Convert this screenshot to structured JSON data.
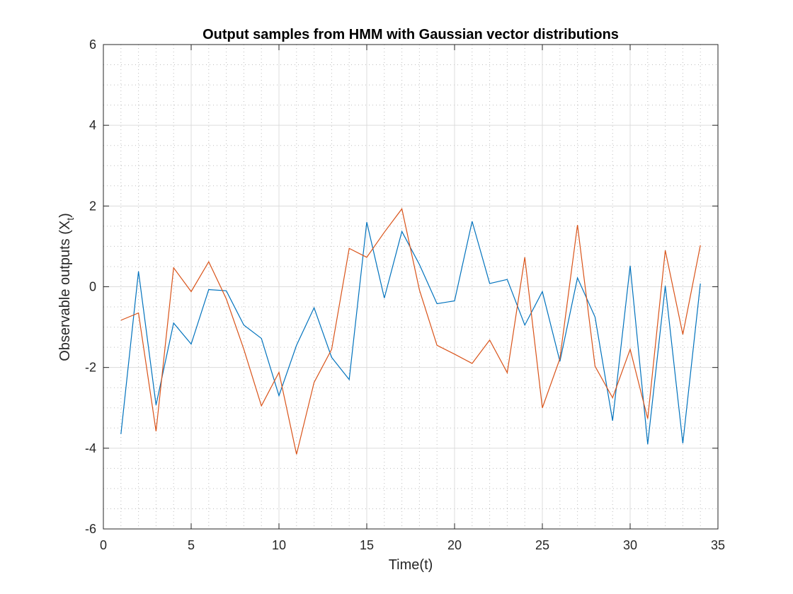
{
  "chart_data": {
    "type": "line",
    "title": "Output samples from HMM with Gaussian vector distributions",
    "xlabel": "Time(t)",
    "ylabel": "Observable outputs (X",
    "ylabel_subscript": "t",
    "ylabel_suffix": ")",
    "xlim": [
      0,
      35
    ],
    "ylim": [
      -6,
      6
    ],
    "xticks": [
      0,
      5,
      10,
      15,
      20,
      25,
      30,
      35
    ],
    "yticks": [
      -6,
      -4,
      -2,
      0,
      2,
      4,
      6
    ],
    "grid": true,
    "minor_grid": true,
    "x": [
      1,
      2,
      3,
      4,
      5,
      6,
      7,
      8,
      9,
      10,
      11,
      12,
      13,
      14,
      15,
      16,
      17,
      18,
      19,
      20,
      21,
      22,
      23,
      24,
      25,
      26,
      27,
      28,
      29,
      30,
      31,
      32,
      33,
      34
    ],
    "series": [
      {
        "color": "#0072BD",
        "values": [
          -3.65,
          0.38,
          -2.93,
          -0.9,
          -1.42,
          -0.07,
          -0.1,
          -0.95,
          -1.28,
          -2.7,
          -1.45,
          -0.52,
          -1.75,
          -2.3,
          1.6,
          -0.28,
          1.37,
          0.55,
          -0.42,
          -0.35,
          1.62,
          0.08,
          0.18,
          -0.95,
          -0.12,
          -1.85,
          0.22,
          -0.75,
          -3.32,
          0.52,
          -3.9,
          0.02,
          -3.88,
          0.08
        ]
      },
      {
        "color": "#D95319",
        "values": [
          -0.83,
          -0.65,
          -3.58,
          0.47,
          -0.12,
          0.62,
          -0.3,
          -1.55,
          -2.95,
          -2.12,
          -4.15,
          -2.37,
          -1.55,
          0.95,
          0.73,
          1.35,
          1.93,
          -0.08,
          -1.45,
          -1.67,
          -1.9,
          -1.32,
          -2.13,
          0.73,
          -3.0,
          -1.78,
          1.53,
          -1.97,
          -2.75,
          -1.55,
          -3.27,
          0.9,
          -1.18,
          1.03
        ]
      }
    ]
  }
}
